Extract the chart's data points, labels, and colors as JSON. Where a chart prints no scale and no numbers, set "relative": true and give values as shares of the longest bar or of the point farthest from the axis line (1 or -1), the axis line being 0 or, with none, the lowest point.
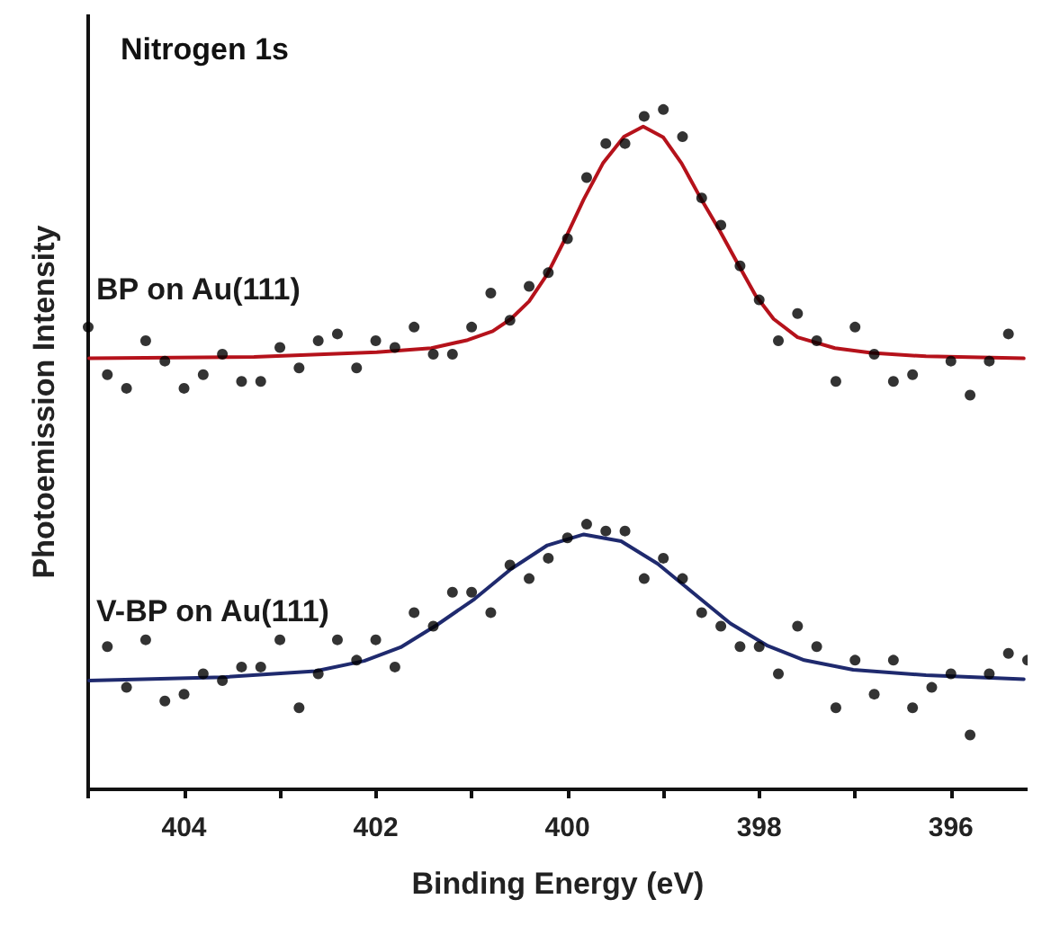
{
  "chart_data": {
    "type": "scatter",
    "title": "Nitrogen 1s",
    "xlabel": "Binding Energy (eV)",
    "ylabel": "Photoemission Intensity",
    "relative": true,
    "xlim": [
      405,
      395.2
    ],
    "xticks": [
      {
        "value": 405,
        "label": null
      },
      404,
      {
        "value": 403,
        "label": null
      },
      402,
      {
        "value": 401,
        "label": null
      },
      400,
      {
        "value": 399,
        "label": null
      },
      398,
      {
        "value": 397,
        "label": null
      },
      396
    ],
    "grid": false,
    "legend": false,
    "series": [
      {
        "marker": "circle",
        "color": "#000000",
        "x": [
          405.0,
          404.8,
          404.6,
          404.4,
          404.2,
          404.0,
          403.8,
          403.6,
          403.4,
          403.2,
          403.0,
          402.8,
          402.6,
          402.4,
          402.2,
          402.0,
          401.8,
          401.6,
          401.4,
          401.2,
          401.0,
          400.8,
          400.6,
          400.4,
          400.2,
          400.0,
          399.8,
          399.6,
          399.4,
          399.2,
          399.0,
          398.8,
          398.6,
          398.4,
          398.2,
          398.0,
          397.8,
          397.6,
          397.4,
          397.2,
          397.0,
          396.8,
          396.6,
          396.4,
          396.0,
          395.8,
          395.6,
          395.4
        ],
        "values": [
          0.68,
          0.61,
          0.59,
          0.66,
          0.63,
          0.59,
          0.61,
          0.64,
          0.6,
          0.6,
          0.65,
          0.62,
          0.66,
          0.67,
          0.62,
          0.66,
          0.65,
          0.68,
          0.64,
          0.64,
          0.68,
          0.73,
          0.69,
          0.74,
          0.76,
          0.81,
          0.9,
          0.95,
          0.95,
          0.99,
          1.0,
          0.96,
          0.87,
          0.83,
          0.77,
          0.72,
          0.66,
          0.7,
          0.66,
          0.6,
          0.68,
          0.64,
          0.6,
          0.61,
          0.63,
          0.58,
          0.63,
          0.67
        ]
      },
      {
        "type": "line",
        "name": "BP on Au(111)",
        "marker": "none",
        "line_style": "solid",
        "color": "#b5121b",
        "x": [
          404.99,
          403.27,
          401.99,
          401.42,
          401.04,
          400.78,
          400.59,
          400.4,
          400.21,
          400.02,
          399.83,
          399.63,
          399.41,
          399.21,
          399.0,
          398.81,
          398.62,
          398.42,
          398.23,
          398.04,
          397.85,
          397.6,
          397.21,
          396.83,
          396.26,
          395.24
        ],
        "values": [
          0.634,
          0.636,
          0.643,
          0.649,
          0.661,
          0.674,
          0.692,
          0.718,
          0.758,
          0.811,
          0.868,
          0.921,
          0.96,
          0.975,
          0.959,
          0.921,
          0.872,
          0.824,
          0.775,
          0.727,
          0.692,
          0.665,
          0.649,
          0.642,
          0.637,
          0.634
        ]
      },
      {
        "marker": "circle",
        "color": "#000000",
        "x": [
          404.8,
          404.6,
          404.4,
          404.2,
          404.0,
          403.8,
          403.6,
          403.4,
          403.2,
          403.0,
          402.8,
          402.6,
          402.4,
          402.2,
          402.0,
          401.8,
          401.6,
          401.4,
          401.2,
          401.0,
          400.8,
          400.6,
          400.4,
          400.2,
          400.0,
          399.8,
          399.6,
          399.4,
          399.2,
          399.0,
          398.8,
          398.6,
          398.4,
          398.2,
          398.0,
          397.8,
          397.6,
          397.4,
          397.2,
          397.0,
          396.8,
          396.6,
          396.4,
          396.2,
          396.0,
          395.8,
          395.6,
          395.4,
          395.2
        ],
        "values": [
          0.21,
          0.15,
          0.22,
          0.13,
          0.14,
          0.17,
          0.16,
          0.18,
          0.18,
          0.22,
          0.12,
          0.17,
          0.22,
          0.19,
          0.22,
          0.18,
          0.26,
          0.24,
          0.29,
          0.29,
          0.26,
          0.33,
          0.31,
          0.34,
          0.37,
          0.39,
          0.38,
          0.38,
          0.31,
          0.34,
          0.31,
          0.26,
          0.24,
          0.21,
          0.21,
          0.17,
          0.24,
          0.21,
          0.12,
          0.19,
          0.14,
          0.19,
          0.12,
          0.15,
          0.17,
          0.08,
          0.17,
          0.2,
          0.19
        ]
      },
      {
        "type": "line",
        "name": "V-BP on Au(111)",
        "marker": "none",
        "line_style": "solid",
        "color": "#1f2a6e",
        "x": [
          404.99,
          403.59,
          402.63,
          402.12,
          401.74,
          401.36,
          400.97,
          400.59,
          400.21,
          399.83,
          399.44,
          399.06,
          398.68,
          398.3,
          397.91,
          397.53,
          397.02,
          396.26,
          395.24
        ],
        "values": [
          0.16,
          0.165,
          0.174,
          0.189,
          0.209,
          0.242,
          0.28,
          0.324,
          0.359,
          0.375,
          0.365,
          0.332,
          0.288,
          0.244,
          0.211,
          0.19,
          0.176,
          0.168,
          0.162
        ]
      }
    ]
  }
}
